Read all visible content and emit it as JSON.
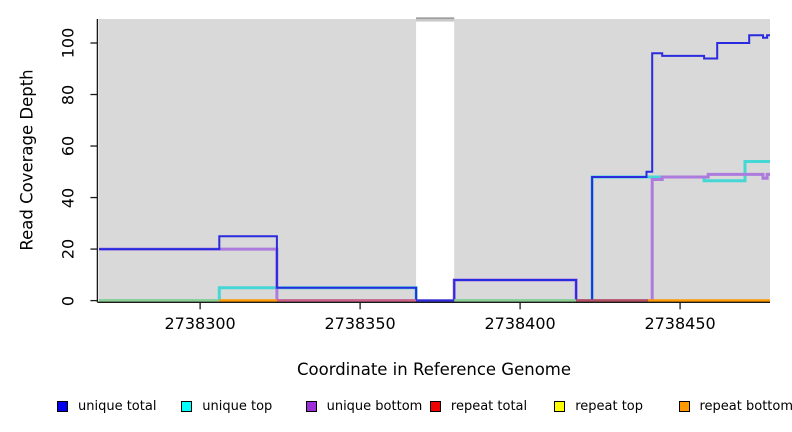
{
  "chart_data": {
    "type": "step-line",
    "x_label": "Coordinate in Reference Genome",
    "y_label": "Read Coverage Depth",
    "x_ticks": [
      2738300,
      2738350,
      2738400,
      2738450
    ],
    "y_ticks": [
      0,
      20,
      40,
      60,
      80,
      100
    ],
    "x_range": [
      2738268.4,
      2738478.1
    ],
    "y_range": [
      0,
      109
    ],
    "grid": false,
    "plot_bg": "#d9d9d9",
    "axis_color": "#1a1a1a",
    "gap_region": {
      "start": 2738367.5,
      "end": 2738379.4,
      "fill": "#ffffff",
      "cap_fill": "#c9c9c9",
      "cap_edge": "#989898"
    },
    "series": [
      {
        "name": "repeat top",
        "color": "#FFFF00",
        "width": 2,
        "points": [
          [
            2738268.4,
            0
          ]
        ]
      },
      {
        "name": "repeat total",
        "color": "#EE0000",
        "width": 2,
        "points": [
          [
            2738268.4,
            0
          ]
        ]
      },
      {
        "name": "unique top",
        "color": "#45D6D6",
        "width": 3,
        "points": [
          [
            2738268.4,
            0
          ],
          [
            2738306,
            5
          ],
          [
            2738367.5,
            0
          ],
          [
            2738422.5,
            48
          ],
          [
            2738457.5,
            46.5
          ],
          [
            2738470.3,
            54
          ]
        ]
      },
      {
        "name": "unique bottom",
        "color": "#AD7BDE",
        "width": 3,
        "points": [
          [
            2738268.4,
            20
          ],
          [
            2738324,
            0
          ],
          [
            2738379.4,
            8
          ],
          [
            2738417.5,
            0
          ],
          [
            2738441.3,
            47
          ],
          [
            2738444.4,
            48
          ],
          [
            2738458.8,
            49
          ],
          [
            2738475.9,
            47.5
          ],
          [
            2738477.2,
            49
          ]
        ]
      },
      {
        "name": "unique total",
        "color": "#2A2ADF",
        "width": 2,
        "points": [
          [
            2738268.4,
            20
          ],
          [
            2738306,
            25
          ],
          [
            2738324,
            5
          ],
          [
            2738367.5,
            0
          ],
          [
            2738379.4,
            8
          ],
          [
            2738417.5,
            0
          ],
          [
            2738422.5,
            48
          ],
          [
            2738439.5,
            50
          ],
          [
            2738441.3,
            96
          ],
          [
            2738444.4,
            95
          ],
          [
            2738457.5,
            94
          ],
          [
            2738461.6,
            100
          ],
          [
            2738471.6,
            103
          ],
          [
            2738475.9,
            102
          ],
          [
            2738477.2,
            103
          ]
        ]
      }
    ],
    "baseline_segments": [
      {
        "color": "#8FCD8F",
        "from": 2738268.4,
        "to": 2738306
      },
      {
        "color": "#FF9900",
        "from": 2738306,
        "to": 2738324
      },
      {
        "color": "#CC6384",
        "from": 2738324,
        "to": 2738367.5
      },
      {
        "color": "#8FCD8F",
        "from": 2738379.4,
        "to": 2738417.5
      },
      {
        "color": "#B5505F",
        "from": 2738417.5,
        "to": 2738440
      },
      {
        "color": "#FF9900",
        "from": 2738440,
        "to": 2738478.1
      }
    ],
    "legend": [
      {
        "label": "unique total",
        "color": "#0000EE"
      },
      {
        "label": "unique top",
        "color": "#00FFFF"
      },
      {
        "label": "unique bottom",
        "color": "#9B30D6"
      },
      {
        "label": "repeat total",
        "color": "#EE0000"
      },
      {
        "label": "repeat top",
        "color": "#FFFF00"
      },
      {
        "label": "repeat bottom",
        "color": "#FF9900"
      }
    ]
  }
}
